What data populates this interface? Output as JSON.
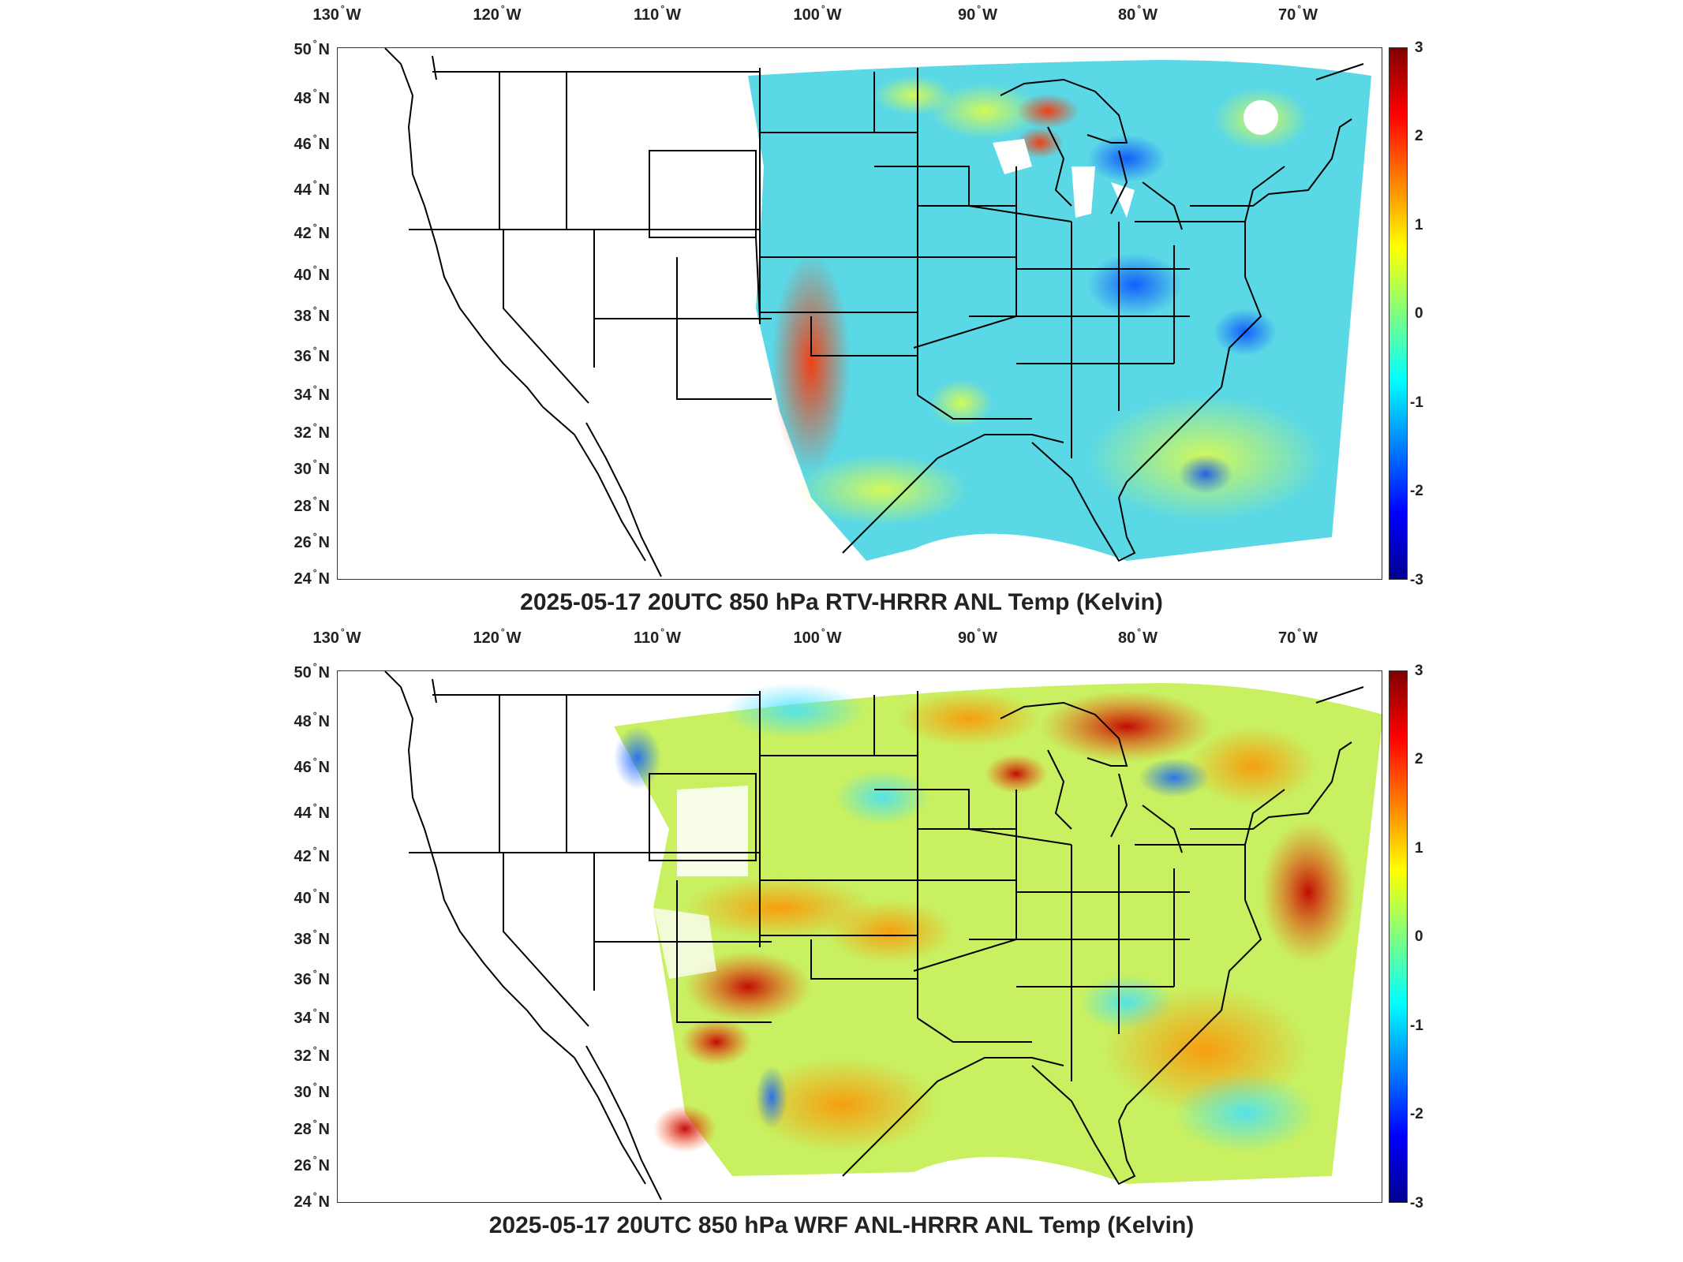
{
  "lon_labels": [
    "130",
    "120",
    "110",
    "100",
    "90",
    "80",
    "70"
  ],
  "lon_hemisphere": "W",
  "lat_labels": [
    "50",
    "48",
    "46",
    "44",
    "42",
    "40",
    "38",
    "36",
    "34",
    "32",
    "30",
    "28",
    "26",
    "24"
  ],
  "lat_hemisphere": "N",
  "colorbar": {
    "ticks": [
      "3",
      "2",
      "1",
      "0",
      "-1",
      "-2",
      "-3"
    ],
    "range": [
      -3,
      3
    ],
    "colormap": "jet",
    "colors": [
      "#7f0000",
      "#ff0000",
      "#ff8000",
      "#ffff00",
      "#80ff80",
      "#00ffff",
      "#0080ff",
      "#0000ff",
      "#00008f"
    ]
  },
  "panels": [
    {
      "title": "2025-05-17 20UTC 850 hPa RTV-HRRR ANL Temp (Kelvin)",
      "dominant_tone": "cool",
      "field_fill": "#5ad8e6"
    },
    {
      "title": "2025-05-17 20UTC 850 hPa WRF ANL-HRRR ANL Temp (Kelvin)",
      "dominant_tone": "warm",
      "field_fill": "#c8f060"
    }
  ]
}
